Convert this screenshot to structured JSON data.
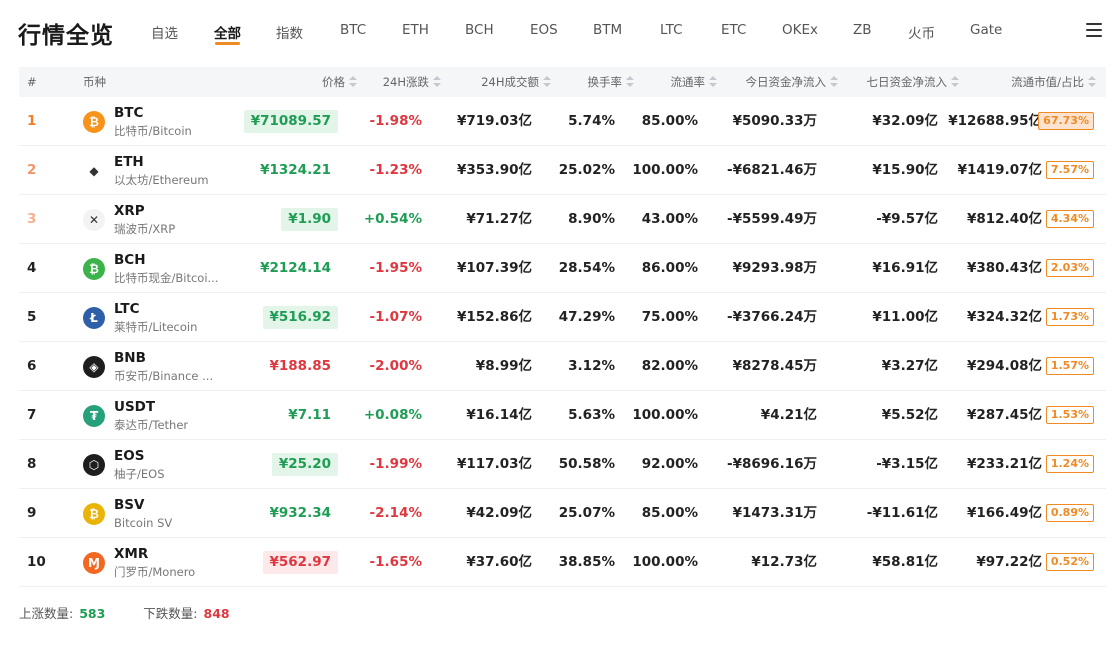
{
  "header": {
    "title": "行情全览",
    "tabs": [
      {
        "label": "自选"
      },
      {
        "label": "全部"
      },
      {
        "label": "指数"
      },
      {
        "label": "BTC"
      },
      {
        "label": "ETH"
      },
      {
        "label": "BCH"
      },
      {
        "label": "EOS"
      },
      {
        "label": "BTM"
      },
      {
        "label": "LTC"
      },
      {
        "label": "ETC"
      },
      {
        "label": "OKEx"
      },
      {
        "label": "ZB"
      },
      {
        "label": "火币"
      },
      {
        "label": "Gate"
      }
    ],
    "active_tab": "全部",
    "accent_color": "#f08a24"
  },
  "table": {
    "columns": {
      "rank": "#",
      "coin": "币种",
      "price": "价格",
      "change": "24H涨跌",
      "volume": "24H成交额",
      "turnover": "换手率",
      "circulation": "流通率",
      "flow_today": "今日资金净流入",
      "flow_7d": "七日资金净流入",
      "mcap": "流通市值/占比"
    },
    "rows": [
      {
        "rank": "1",
        "symbol": "BTC",
        "name": "比特币/Bitcoin",
        "icon": "bitcoin-icon",
        "icon_color": "#f7931a",
        "icon_glyph": "₿",
        "price": "¥71089.57",
        "price_style": "green",
        "change": "-1.98%",
        "change_dir": "down",
        "volume": "¥719.03亿",
        "turnover": "5.74%",
        "circulation": "85.00%",
        "flow_today": "¥5090.33万",
        "flow_7d": "¥32.09亿",
        "mcap": "¥12688.95亿",
        "share": "67.73%"
      },
      {
        "rank": "2",
        "symbol": "ETH",
        "name": "以太坊/Ethereum",
        "icon": "ethereum-icon",
        "icon_color": "#ffffff",
        "icon_glyph": "◆",
        "price": "¥1324.21",
        "price_style": "plain-green",
        "change": "-1.23%",
        "change_dir": "down",
        "volume": "¥353.90亿",
        "turnover": "25.02%",
        "circulation": "100.00%",
        "flow_today": "-¥6821.46万",
        "flow_7d": "¥15.90亿",
        "mcap": "¥1419.07亿",
        "share": "7.57%"
      },
      {
        "rank": "3",
        "symbol": "XRP",
        "name": "瑞波币/XRP",
        "icon": "ripple-icon",
        "icon_color": "#f3f3f3",
        "icon_glyph": "✕",
        "price": "¥1.90",
        "price_style": "green",
        "change": "+0.54%",
        "change_dir": "up",
        "volume": "¥71.27亿",
        "turnover": "8.90%",
        "circulation": "43.00%",
        "flow_today": "-¥5599.49万",
        "flow_7d": "-¥9.57亿",
        "mcap": "¥812.40亿",
        "share": "4.34%"
      },
      {
        "rank": "4",
        "symbol": "BCH",
        "name": "比特币现金/Bitcoi...",
        "icon": "bitcoin-cash-icon",
        "icon_color": "#3cb34a",
        "icon_glyph": "₿",
        "price": "¥2124.14",
        "price_style": "plain-green",
        "change": "-1.95%",
        "change_dir": "down",
        "volume": "¥107.39亿",
        "turnover": "28.54%",
        "circulation": "86.00%",
        "flow_today": "¥9293.98万",
        "flow_7d": "¥16.91亿",
        "mcap": "¥380.43亿",
        "share": "2.03%"
      },
      {
        "rank": "5",
        "symbol": "LTC",
        "name": "莱特币/Litecoin",
        "icon": "litecoin-icon",
        "icon_color": "#2f5fa8",
        "icon_glyph": "Ł",
        "price": "¥516.92",
        "price_style": "green",
        "change": "-1.07%",
        "change_dir": "down",
        "volume": "¥152.86亿",
        "turnover": "47.29%",
        "circulation": "75.00%",
        "flow_today": "-¥3766.24万",
        "flow_7d": "¥11.00亿",
        "mcap": "¥324.32亿",
        "share": "1.73%"
      },
      {
        "rank": "6",
        "symbol": "BNB",
        "name": "币安币/Binance ...",
        "icon": "binance-icon",
        "icon_color": "#1e1e1e",
        "icon_glyph": "◈",
        "price": "¥188.85",
        "price_style": "plain-red",
        "change": "-2.00%",
        "change_dir": "down",
        "volume": "¥8.99亿",
        "turnover": "3.12%",
        "circulation": "82.00%",
        "flow_today": "¥8278.45万",
        "flow_7d": "¥3.27亿",
        "mcap": "¥294.08亿",
        "share": "1.57%"
      },
      {
        "rank": "7",
        "symbol": "USDT",
        "name": "泰达币/Tether",
        "icon": "tether-icon",
        "icon_color": "#26a17b",
        "icon_glyph": "₮",
        "price": "¥7.11",
        "price_style": "plain-green",
        "change": "+0.08%",
        "change_dir": "up",
        "volume": "¥16.14亿",
        "turnover": "5.63%",
        "circulation": "100.00%",
        "flow_today": "¥4.21亿",
        "flow_7d": "¥5.52亿",
        "mcap": "¥287.45亿",
        "share": "1.53%"
      },
      {
        "rank": "8",
        "symbol": "EOS",
        "name": "柚子/EOS",
        "icon": "eos-icon",
        "icon_color": "#1e1e1e",
        "icon_glyph": "⬡",
        "price": "¥25.20",
        "price_style": "green",
        "change": "-1.99%",
        "change_dir": "down",
        "volume": "¥117.03亿",
        "turnover": "50.58%",
        "circulation": "92.00%",
        "flow_today": "-¥8696.16万",
        "flow_7d": "-¥3.15亿",
        "mcap": "¥233.21亿",
        "share": "1.24%"
      },
      {
        "rank": "9",
        "symbol": "BSV",
        "name": "Bitcoin SV",
        "icon": "bitcoin-sv-icon",
        "icon_color": "#eab308",
        "icon_glyph": "₿",
        "price": "¥932.34",
        "price_style": "plain-green",
        "change": "-2.14%",
        "change_dir": "down",
        "volume": "¥42.09亿",
        "turnover": "25.07%",
        "circulation": "85.00%",
        "flow_today": "¥1473.31万",
        "flow_7d": "-¥11.61亿",
        "mcap": "¥166.49亿",
        "share": "0.89%"
      },
      {
        "rank": "10",
        "symbol": "XMR",
        "name": "门罗币/Monero",
        "icon": "monero-icon",
        "icon_color": "#f26822",
        "icon_glyph": "Ɱ",
        "price": "¥562.97",
        "price_style": "red",
        "change": "-1.65%",
        "change_dir": "down",
        "volume": "¥37.60亿",
        "turnover": "38.85%",
        "circulation": "100.00%",
        "flow_today": "¥12.73亿",
        "flow_7d": "¥58.81亿",
        "mcap": "¥97.22亿",
        "share": "0.52%"
      }
    ]
  },
  "footer": {
    "up_label": "上涨数量:",
    "up_count": "583",
    "down_label": "下跌数量:",
    "down_count": "848"
  }
}
